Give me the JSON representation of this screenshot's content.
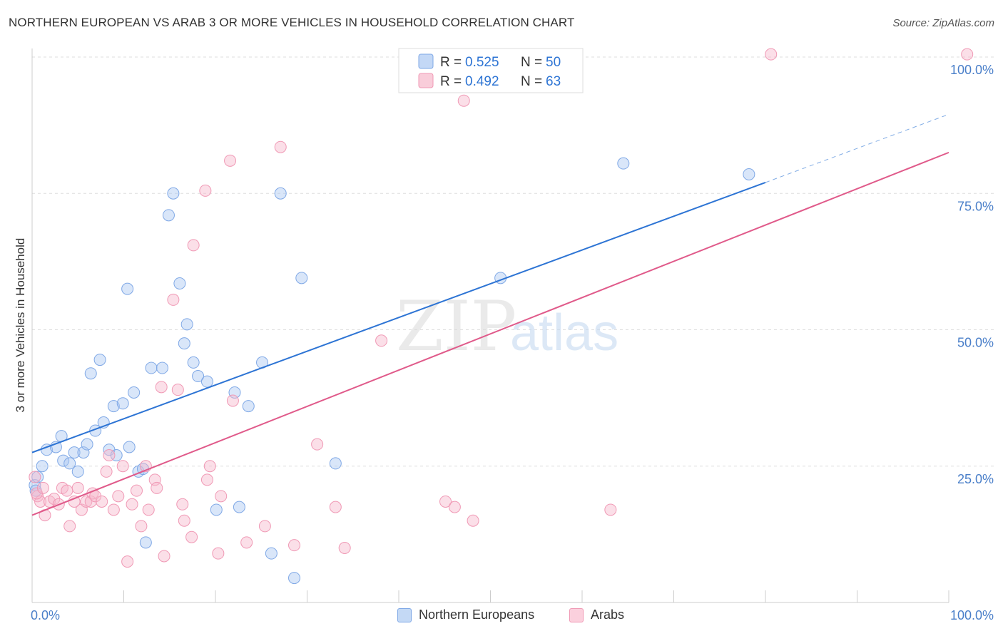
{
  "title": "NORTHERN EUROPEAN VS ARAB 3 OR MORE VEHICLES IN HOUSEHOLD CORRELATION CHART",
  "source": "Source: ZipAtlas.com",
  "watermark": {
    "zip": "ZIP",
    "atlas": "atlas"
  },
  "chart_data": {
    "type": "scatter",
    "title": "NORTHERN EUROPEAN VS ARAB 3 OR MORE VEHICLES IN HOUSEHOLD CORRELATION CHART",
    "xlabel": "",
    "ylabel": "3 or more Vehicles in Household",
    "xlim": [
      0,
      100
    ],
    "ylim": [
      0,
      100
    ],
    "x_tick_labels": {
      "left": "0.0%",
      "right": "100.0%"
    },
    "y_ticks": [
      {
        "value": 25,
        "label": "25.0%"
      },
      {
        "value": 50,
        "label": "50.0%"
      },
      {
        "value": 75,
        "label": "75.0%"
      },
      {
        "value": 100,
        "label": "100.0%"
      }
    ],
    "legend": [
      {
        "name": "Northern Europeans",
        "r_label": "R =",
        "r_value": "0.525",
        "n_label": "N =",
        "n_value": "50"
      },
      {
        "name": "Arabs",
        "r_label": "R =",
        "r_value": "0.492",
        "n_label": "N =",
        "n_value": "63"
      }
    ],
    "series": [
      {
        "name": "Northern Europeans",
        "color": "#7fa8e6",
        "fill": "#aac8f2",
        "line_color": "#2d74d4",
        "trend": {
          "x0": 0,
          "y0": 27.5,
          "x1": 80,
          "y1": 77,
          "dash_to_x": 100,
          "dash_to_y": 89.5
        },
        "points": [
          [
            0.3,
            21.5
          ],
          [
            0.4,
            20.5
          ],
          [
            0.6,
            23
          ],
          [
            1.1,
            25
          ],
          [
            1.6,
            28
          ],
          [
            2.6,
            28.5
          ],
          [
            3.2,
            30.5
          ],
          [
            3.4,
            26
          ],
          [
            4.1,
            25.5
          ],
          [
            4.6,
            27.5
          ],
          [
            5.0,
            24
          ],
          [
            5.6,
            27.5
          ],
          [
            6.0,
            29
          ],
          [
            6.4,
            42
          ],
          [
            6.9,
            31.5
          ],
          [
            7.4,
            44.5
          ],
          [
            7.8,
            33
          ],
          [
            8.4,
            28
          ],
          [
            8.9,
            36
          ],
          [
            9.2,
            27
          ],
          [
            9.9,
            36.5
          ],
          [
            10.4,
            57.5
          ],
          [
            10.6,
            28.5
          ],
          [
            11.1,
            38.5
          ],
          [
            11.6,
            24
          ],
          [
            12.1,
            24.5
          ],
          [
            12.4,
            11
          ],
          [
            13.0,
            43
          ],
          [
            14.2,
            43
          ],
          [
            14.9,
            71
          ],
          [
            15.4,
            75
          ],
          [
            16.1,
            58.5
          ],
          [
            16.6,
            47.5
          ],
          [
            16.9,
            51
          ],
          [
            17.6,
            44
          ],
          [
            18.1,
            41.5
          ],
          [
            19.1,
            40.5
          ],
          [
            20.1,
            17
          ],
          [
            22.1,
            38.5
          ],
          [
            22.6,
            17.5
          ],
          [
            23.6,
            36
          ],
          [
            25.1,
            44
          ],
          [
            26.1,
            9
          ],
          [
            27.1,
            75
          ],
          [
            28.6,
            4.5
          ],
          [
            29.4,
            59.5
          ],
          [
            33.1,
            25.5
          ],
          [
            51.1,
            59.5
          ],
          [
            64.5,
            80.5
          ],
          [
            78.2,
            78.5
          ]
        ]
      },
      {
        "name": "Arabs",
        "color": "#f099b5",
        "fill": "#f7b8cb",
        "line_color": "#e05a8a",
        "trend": {
          "x0": 0,
          "y0": 16,
          "x1": 100,
          "y1": 82.5
        },
        "points": [
          [
            0.3,
            23
          ],
          [
            0.6,
            19.5
          ],
          [
            0.9,
            18.5
          ],
          [
            1.4,
            16
          ],
          [
            1.9,
            18.5
          ],
          [
            2.4,
            19
          ],
          [
            2.9,
            18
          ],
          [
            3.3,
            21
          ],
          [
            3.8,
            20.5
          ],
          [
            4.1,
            14
          ],
          [
            4.6,
            18.5
          ],
          [
            5.0,
            21
          ],
          [
            5.4,
            17
          ],
          [
            5.9,
            18.5
          ],
          [
            6.4,
            18.5
          ],
          [
            6.6,
            20
          ],
          [
            6.9,
            19.5
          ],
          [
            7.6,
            18.5
          ],
          [
            8.1,
            24
          ],
          [
            8.4,
            27
          ],
          [
            8.9,
            17
          ],
          [
            9.4,
            19.5
          ],
          [
            9.9,
            25
          ],
          [
            10.4,
            7.5
          ],
          [
            10.9,
            18
          ],
          [
            11.4,
            20.5
          ],
          [
            11.9,
            14
          ],
          [
            12.4,
            25
          ],
          [
            12.7,
            17
          ],
          [
            13.4,
            22.5
          ],
          [
            13.6,
            21
          ],
          [
            14.1,
            39.5
          ],
          [
            14.4,
            8.5
          ],
          [
            15.4,
            55.5
          ],
          [
            15.9,
            39
          ],
          [
            16.4,
            18
          ],
          [
            16.6,
            15
          ],
          [
            17.4,
            12
          ],
          [
            17.6,
            65.5
          ],
          [
            18.9,
            75.5
          ],
          [
            19.1,
            22.5
          ],
          [
            19.4,
            25
          ],
          [
            20.3,
            9
          ],
          [
            20.6,
            19.5
          ],
          [
            21.9,
            37
          ],
          [
            21.6,
            81
          ],
          [
            23.4,
            11
          ],
          [
            25.4,
            14
          ],
          [
            27.1,
            83.5
          ],
          [
            28.6,
            10.5
          ],
          [
            31.1,
            29
          ],
          [
            33.1,
            17.5
          ],
          [
            34.1,
            10
          ],
          [
            38.1,
            48
          ],
          [
            45.1,
            18.5
          ],
          [
            46.1,
            17.5
          ],
          [
            47.1,
            92
          ],
          [
            48.1,
            15
          ],
          [
            63.1,
            17
          ],
          [
            80.6,
            100.5
          ],
          [
            102.0,
            100.5
          ],
          [
            0.5,
            20
          ],
          [
            1.2,
            21
          ]
        ]
      }
    ]
  }
}
